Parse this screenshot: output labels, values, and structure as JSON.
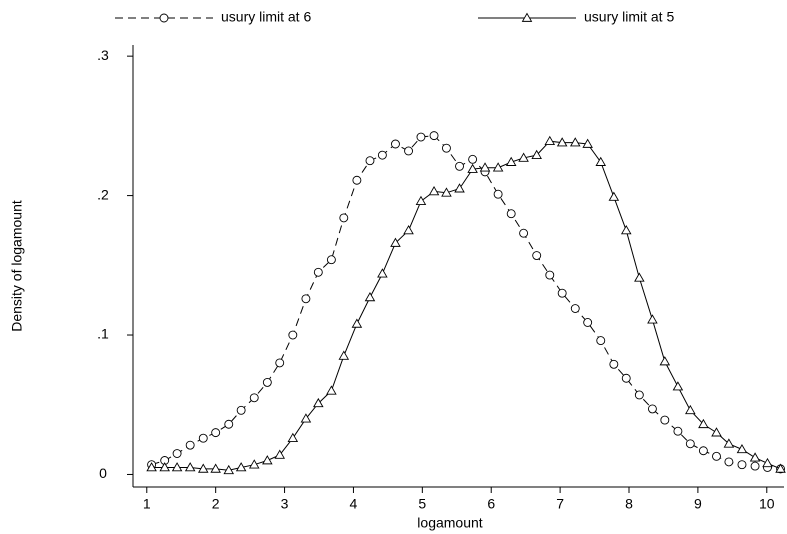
{
  "chart_data": {
    "type": "line",
    "xlabel": "logamount",
    "ylabel": "Density of logamount",
    "x": [
      1.07,
      1.26,
      1.44,
      1.63,
      1.82,
      2.0,
      2.19,
      2.37,
      2.56,
      2.75,
      2.93,
      3.12,
      3.31,
      3.49,
      3.68,
      3.86,
      4.05,
      4.24,
      4.42,
      4.61,
      4.8,
      4.98,
      5.17,
      5.35,
      5.54,
      5.73,
      5.91,
      6.1,
      6.29,
      6.47,
      6.66,
      6.85,
      7.03,
      7.22,
      7.4,
      7.59,
      7.78,
      7.96,
      8.15,
      8.34,
      8.52,
      8.71,
      8.89,
      9.08,
      9.27,
      9.45,
      9.64,
      9.83,
      10.01,
      10.2
    ],
    "series": [
      {
        "name": "usury limit at 6",
        "color": "#000000",
        "line_style": "dashed",
        "marker": "circle",
        "values": [
          0.007,
          0.01,
          0.015,
          0.021,
          0.026,
          0.03,
          0.036,
          0.046,
          0.055,
          0.066,
          0.08,
          0.1,
          0.126,
          0.145,
          0.154,
          0.184,
          0.211,
          0.225,
          0.229,
          0.237,
          0.232,
          0.242,
          0.243,
          0.234,
          0.221,
          0.226,
          0.217,
          0.201,
          0.187,
          0.173,
          0.157,
          0.143,
          0.13,
          0.119,
          0.109,
          0.096,
          0.079,
          0.069,
          0.057,
          0.047,
          0.039,
          0.031,
          0.022,
          0.017,
          0.013,
          0.009,
          0.007,
          0.006,
          0.005,
          0.004
        ]
      },
      {
        "name": "usury limit at 5",
        "color": "#000000",
        "line_style": "solid",
        "marker": "triangle",
        "values": [
          0.005,
          0.005,
          0.005,
          0.005,
          0.004,
          0.004,
          0.003,
          0.005,
          0.007,
          0.01,
          0.014,
          0.026,
          0.04,
          0.051,
          0.06,
          0.085,
          0.108,
          0.127,
          0.144,
          0.166,
          0.175,
          0.196,
          0.203,
          0.202,
          0.205,
          0.219,
          0.22,
          0.22,
          0.224,
          0.227,
          0.229,
          0.239,
          0.238,
          0.238,
          0.237,
          0.224,
          0.199,
          0.175,
          0.141,
          0.111,
          0.081,
          0.063,
          0.046,
          0.036,
          0.03,
          0.022,
          0.018,
          0.012,
          0.008,
          0.004
        ]
      }
    ],
    "xlim": [
      0.8,
      10.25
    ],
    "ylim": [
      -0.009,
      0.308
    ],
    "xticks": [
      1,
      2,
      3,
      4,
      5,
      6,
      7,
      8,
      9,
      10
    ],
    "yticks": [
      0,
      {
        "value": 0.1,
        "label": ".1"
      },
      {
        "value": 0.2,
        "label": ".2"
      },
      {
        "value": 0.3,
        "label": ".3"
      }
    ],
    "grid": false,
    "legend": "top"
  }
}
